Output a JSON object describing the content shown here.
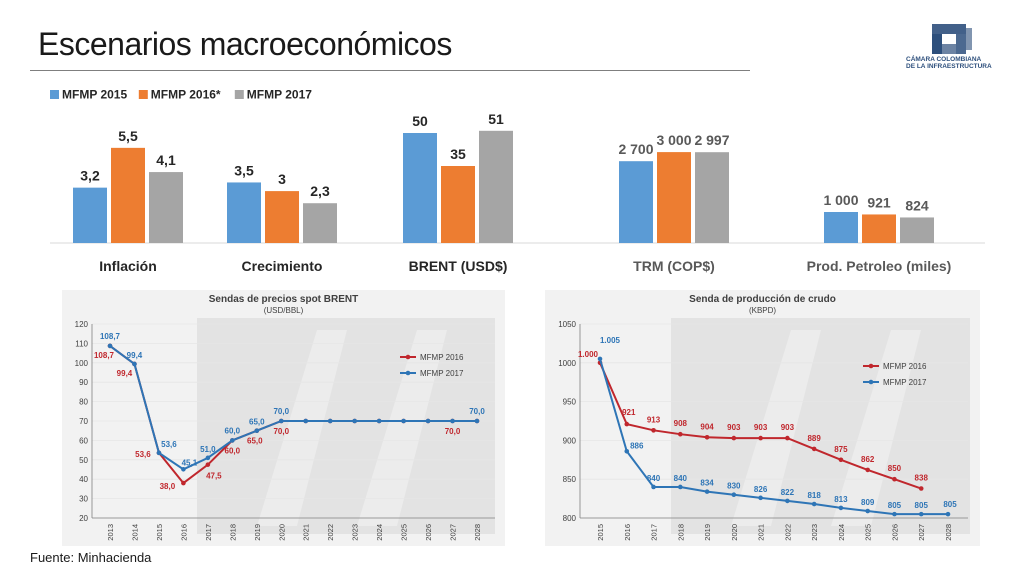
{
  "slide": {
    "title": "Escenarios macroeconómicos",
    "source": "Fuente: Minhacienda",
    "logo_text": [
      "CÁMARA COLOMBIANA",
      "DE LA INFRAESTRUCTURA"
    ]
  },
  "colors": {
    "mfmp2015": "#5b9bd5",
    "mfmp2016": "#ed7d31",
    "mfmp2017": "#a5a5a5",
    "line2016": "#c0272d",
    "line2017": "#2e75b6",
    "logo": "#2d4f7c"
  },
  "chart_data": [
    {
      "type": "bar",
      "series": [
        {
          "name": "MFMP 2015",
          "color": "#5b9bd5"
        },
        {
          "name": "MFMP 2016*",
          "color": "#ed7d31"
        },
        {
          "name": "MFMP 2017",
          "color": "#a5a5a5"
        }
      ],
      "groups": [
        {
          "label": "Inflación",
          "values": [
            3.2,
            5.5,
            4.1
          ],
          "value_labels": [
            "3,2",
            "5,5",
            "4,1"
          ],
          "bold": true
        },
        {
          "label": "Crecimiento",
          "values": [
            3.5,
            3,
            2.3
          ],
          "value_labels": [
            "3,5",
            "3",
            "2,3"
          ],
          "bold": true
        },
        {
          "label": "BRENT (USD$)",
          "values": [
            50,
            35,
            51
          ],
          "value_labels": [
            "50",
            "35",
            "51"
          ],
          "bold": true
        },
        {
          "label": "TRM (COP$)",
          "values": [
            2700,
            3000,
            2997
          ],
          "value_labels": [
            "2 700",
            "3 000",
            "2 997"
          ],
          "bold": false
        },
        {
          "label": "Prod. Petroleo (miles)",
          "values": [
            1000,
            921,
            824
          ],
          "value_labels": [
            "1 000",
            "921",
            "824"
          ],
          "bold": false
        }
      ],
      "legend_position": "top-left"
    },
    {
      "type": "line",
      "title": "Sendas de precios spot BRENT",
      "subtitle": "(USD/BBL)",
      "x": [
        "2013",
        "2014",
        "2015",
        "2016",
        "2017",
        "2018",
        "2019",
        "2020",
        "2021",
        "2022",
        "2023",
        "2024",
        "2025",
        "2026",
        "2027",
        "2028"
      ],
      "ylim": [
        20,
        120
      ],
      "yticks": [
        20,
        30,
        40,
        50,
        60,
        70,
        80,
        90,
        100,
        110,
        120
      ],
      "series": [
        {
          "name": "MFMP 2016",
          "color": "#c0272d",
          "values": [
            108.7,
            99.4,
            53.6,
            38.0,
            47.5,
            60.0,
            65.0,
            70.0,
            70.0,
            70.0,
            70.0,
            70.0,
            70.0,
            70.0,
            70.0,
            70.0
          ],
          "point_labels": {
            "0": "108,7",
            "1": "99,4",
            "2": "53,6",
            "3": "38,0",
            "4": "47,5",
            "5": "60,0",
            "6": "65,0",
            "7": "70,0",
            "14": "70,0"
          }
        },
        {
          "name": "MFMP 2017",
          "color": "#2e75b6",
          "values": [
            108.7,
            99.4,
            53.6,
            45.1,
            51.0,
            60.0,
            65.0,
            70.0,
            70.0,
            70.0,
            70.0,
            70.0,
            70.0,
            70.0,
            70.0,
            70.0
          ],
          "point_labels": {
            "0": "108,7",
            "1": "99,4",
            "2": "53,6",
            "3": "45,1",
            "4": "51,0",
            "5": "60,0",
            "6": "65,0",
            "7": "70,0",
            "15": "70,0"
          }
        }
      ],
      "legend_position": "right"
    },
    {
      "type": "line",
      "title": "Senda de producción de crudo",
      "subtitle": "(KBPD)",
      "x": [
        "2015",
        "2016",
        "2017",
        "2018",
        "2019",
        "2020",
        "2021",
        "2022",
        "2023",
        "2024",
        "2025",
        "2026",
        "2027",
        "2028"
      ],
      "ylim": [
        800,
        1050
      ],
      "yticks": [
        800,
        850,
        900,
        950,
        1000,
        1050
      ],
      "series": [
        {
          "name": "MFMP 2016",
          "color": "#c0272d",
          "values": [
            1000,
            921,
            913,
            908,
            904,
            903,
            903,
            903,
            889,
            875,
            862,
            850,
            838,
            null
          ],
          "point_labels": {
            "0": "1.000",
            "1": "921",
            "2": "913",
            "3": "908",
            "4": "904",
            "5": "903",
            "6": "903",
            "7": "903",
            "8": "889",
            "9": "875",
            "10": "862",
            "11": "850",
            "12": "838"
          }
        },
        {
          "name": "MFMP 2017",
          "color": "#2e75b6",
          "values": [
            1005,
            886,
            840,
            840,
            834,
            830,
            826,
            822,
            818,
            813,
            809,
            805,
            805,
            805
          ],
          "point_labels": {
            "0": "1.005",
            "1": "886",
            "2": "840",
            "3": "840",
            "4": "834",
            "5": "830",
            "6": "826",
            "7": "822",
            "8": "818",
            "9": "813",
            "10": "809",
            "11": "805",
            "12": "805",
            "13": "805"
          }
        }
      ],
      "legend_position": "right"
    }
  ]
}
